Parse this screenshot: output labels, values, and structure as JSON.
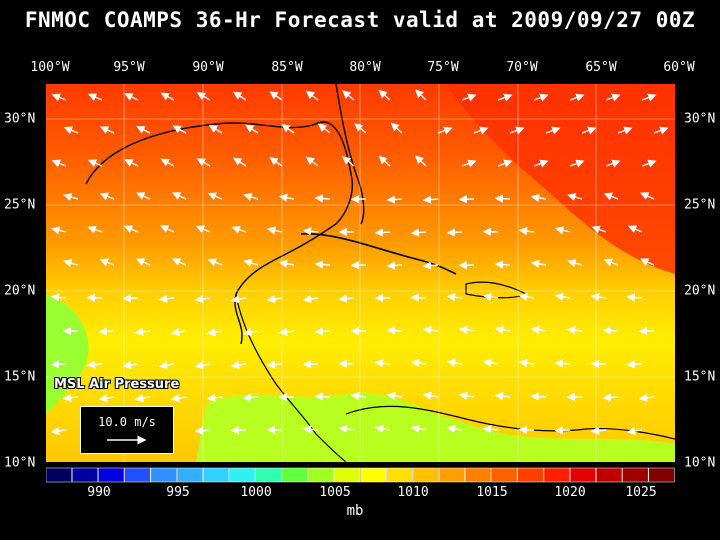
{
  "title": "FNMOC COAMPS 36-Hr Forecast valid at 2009/09/27 00Z",
  "field_label": "MSL Air Pressure",
  "wind_legend": "10.0 m/s",
  "unit": "mb",
  "lon_labels": [
    "100°W",
    "95°W",
    "90°W",
    "85°W",
    "80°W",
    "75°W",
    "70°W",
    "65°W",
    "60°W"
  ],
  "lat_labels": [
    "30°N",
    "25°N",
    "20°N",
    "15°N",
    "10°N"
  ],
  "colorbar": {
    "labels": [
      "990",
      "995",
      "1000",
      "1005",
      "1010",
      "1015",
      "1020",
      "1025"
    ],
    "colors": [
      "#000060",
      "#0000a0",
      "#0000e0",
      "#2050ff",
      "#3090ff",
      "#30b0ff",
      "#30d0ff",
      "#30f0f0",
      "#30ffb0",
      "#60ff40",
      "#a0ff20",
      "#e0ff00",
      "#ffff00",
      "#ffe000",
      "#ffc000",
      "#ffa000",
      "#ff8000",
      "#ff6000",
      "#ff4000",
      "#ff2000",
      "#e00000",
      "#c00000",
      "#a00000",
      "#800000"
    ]
  },
  "colors": {
    "ocean_north": "#ff4500",
    "ocean_mid": "#ffb000",
    "ocean_south": "#ffef00",
    "land_south": "#a0ff20"
  }
}
